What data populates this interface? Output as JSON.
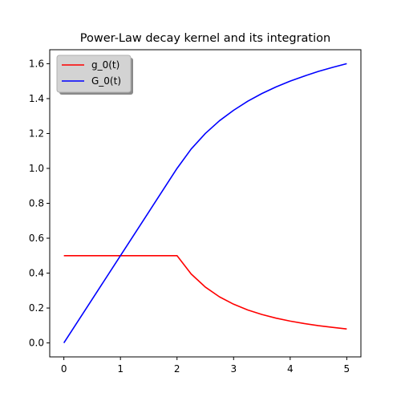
{
  "chart_data": {
    "type": "line",
    "title": "Power-Law decay kernel and its integration",
    "xlabel": "",
    "ylabel": "",
    "xlim": [
      -0.25,
      5.25
    ],
    "ylim": [
      -0.08,
      1.68
    ],
    "x_ticks": [
      0,
      1,
      2,
      3,
      4,
      5
    ],
    "x_tick_labels": [
      "0",
      "1",
      "2",
      "3",
      "4",
      "5"
    ],
    "y_ticks": [
      0.0,
      0.2,
      0.4,
      0.6,
      0.8,
      1.0,
      1.2,
      1.4,
      1.6
    ],
    "y_tick_labels": [
      "0.0",
      "0.2",
      "0.4",
      "0.6",
      "0.8",
      "1.0",
      "1.2",
      "1.4",
      "1.6"
    ],
    "grid": false,
    "legend": {
      "placement": "top-left",
      "background": "#d3d3d3"
    },
    "series": [
      {
        "name": "g_0(t)",
        "color": "#ff0000",
        "x": [
          0,
          0.5,
          1,
          1.5,
          2,
          2.25,
          2.5,
          2.75,
          3,
          3.25,
          3.5,
          3.75,
          4,
          4.25,
          4.5,
          4.75,
          5
        ],
        "y": [
          0.5,
          0.5,
          0.5,
          0.5,
          0.5,
          0.395,
          0.32,
          0.264,
          0.222,
          0.189,
          0.163,
          0.142,
          0.125,
          0.111,
          0.099,
          0.089,
          0.08
        ]
      },
      {
        "name": "G_0(t)",
        "color": "#0000ff",
        "x": [
          0,
          0.5,
          1,
          1.5,
          2,
          2.25,
          2.5,
          2.75,
          3,
          3.25,
          3.5,
          3.75,
          4,
          4.25,
          4.5,
          4.75,
          5
        ],
        "y": [
          0,
          0.25,
          0.5,
          0.75,
          1.0,
          1.111,
          1.2,
          1.273,
          1.333,
          1.385,
          1.429,
          1.467,
          1.5,
          1.529,
          1.556,
          1.579,
          1.6
        ]
      }
    ]
  }
}
